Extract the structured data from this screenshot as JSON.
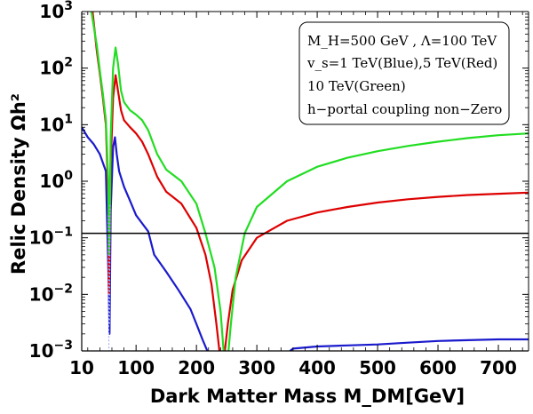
{
  "chart_data": {
    "type": "line",
    "xlabel": "Dark Matter Mass M_DM[GeV]",
    "ylabel": "Relic Density Ωh²",
    "xlim": [
      10,
      750
    ],
    "ylim_log10": [
      -3,
      3
    ],
    "x_ticks": [
      10,
      100,
      200,
      300,
      400,
      500,
      600,
      700
    ],
    "y_ticks": [
      {
        "base": "10",
        "exp": "3",
        "value": 1000
      },
      {
        "base": "10",
        "exp": "2",
        "value": 100
      },
      {
        "base": "10",
        "exp": "1",
        "value": 10
      },
      {
        "base": "10",
        "exp": "0",
        "value": 1
      },
      {
        "base": "10",
        "exp": "−1",
        "value": 0.1
      },
      {
        "base": "10",
        "exp": "−2",
        "value": 0.01
      },
      {
        "base": "10",
        "exp": "−3",
        "value": 0.001
      }
    ],
    "reference_line": {
      "y": 0.12,
      "color": "#000000"
    },
    "legend": [
      "M_H=500 GeV , Λ=100 TeV",
      "v_s=1 TeV(Blue),5 TeV(Red)",
      "10 TeV(Green)",
      "h−portal coupling non−Zero"
    ],
    "series": [
      {
        "name": "vs = 1 TeV",
        "color": "#1a1acd",
        "segments": [
          [
            [
              10,
              9
            ],
            [
              20,
              6
            ],
            [
              30,
              4.5
            ],
            [
              40,
              3
            ],
            [
              50,
              1.5
            ],
            [
              55,
              0.01
            ],
            [
              56,
              0.002
            ],
            [
              58,
              0.3
            ],
            [
              62,
              4
            ],
            [
              65,
              6
            ],
            [
              68,
              3
            ],
            [
              72,
              1.5
            ],
            [
              80,
              0.8
            ],
            [
              90,
              0.45
            ],
            [
              100,
              0.25
            ],
            [
              110,
              0.18
            ],
            [
              120,
              0.13
            ],
            [
              130,
              0.05
            ],
            [
              150,
              0.025
            ],
            [
              170,
              0.012
            ],
            [
              190,
              0.0055
            ],
            [
              200,
              0.003
            ],
            [
              210,
              0.0016
            ],
            [
              218,
              0.001
            ]
          ],
          [
            [
              355,
              0.001
            ],
            [
              360,
              0.0011
            ],
            [
              400,
              0.0012
            ],
            [
              450,
              0.00125
            ],
            [
              500,
              0.0013
            ],
            [
              550,
              0.0014
            ],
            [
              600,
              0.0015
            ],
            [
              650,
              0.00155
            ],
            [
              700,
              0.0016
            ],
            [
              750,
              0.0016
            ]
          ]
        ]
      },
      {
        "name": "vs = 5 TeV",
        "color": "#dd0000",
        "segments": [
          [
            [
              28,
              1000
            ],
            [
              35,
              200
            ],
            [
              40,
              80
            ],
            [
              45,
              30
            ],
            [
              50,
              10
            ],
            [
              54,
              0.5
            ],
            [
              55,
              0.01
            ],
            [
              56,
              0.05
            ],
            [
              58,
              2
            ],
            [
              62,
              30
            ],
            [
              66,
              75
            ],
            [
              70,
              40
            ],
            [
              75,
              18
            ],
            [
              80,
              12
            ],
            [
              90,
              9
            ],
            [
              100,
              7
            ],
            [
              110,
              5
            ],
            [
              120,
              3
            ],
            [
              135,
              1.2
            ],
            [
              150,
              0.65
            ],
            [
              175,
              0.4
            ],
            [
              200,
              0.15
            ],
            [
              215,
              0.05
            ],
            [
              225,
              0.015
            ],
            [
              233,
              0.003
            ],
            [
              238,
              0.001
            ]
          ],
          [
            [
              247,
              0.001
            ],
            [
              252,
              0.003
            ],
            [
              260,
              0.012
            ],
            [
              275,
              0.04
            ],
            [
              300,
              0.1
            ],
            [
              350,
              0.2
            ],
            [
              400,
              0.28
            ],
            [
              450,
              0.35
            ],
            [
              500,
              0.42
            ],
            [
              550,
              0.48
            ],
            [
              600,
              0.53
            ],
            [
              650,
              0.57
            ],
            [
              700,
              0.6
            ],
            [
              750,
              0.63
            ]
          ]
        ]
      },
      {
        "name": "vs = 10 TeV",
        "color": "#22dd22",
        "segments": [
          [
            [
              26,
              1000
            ],
            [
              35,
              250
            ],
            [
              40,
              90
            ],
            [
              45,
              35
            ],
            [
              50,
              12
            ],
            [
              54,
              1
            ],
            [
              55,
              0.05
            ],
            [
              56,
              0.1
            ],
            [
              58,
              6
            ],
            [
              62,
              100
            ],
            [
              66,
              230
            ],
            [
              70,
              120
            ],
            [
              75,
              40
            ],
            [
              80,
              25
            ],
            [
              90,
              18
            ],
            [
              100,
              15
            ],
            [
              110,
              12
            ],
            [
              120,
              8
            ],
            [
              135,
              3
            ],
            [
              150,
              1.6
            ],
            [
              175,
              1
            ],
            [
              200,
              0.4
            ],
            [
              215,
              0.12
            ],
            [
              230,
              0.03
            ],
            [
              240,
              0.005
            ],
            [
              245,
              0.001
            ]
          ],
          [
            [
              253,
              0.001
            ],
            [
              257,
              0.003
            ],
            [
              265,
              0.02
            ],
            [
              280,
              0.12
            ],
            [
              300,
              0.35
            ],
            [
              350,
              1
            ],
            [
              400,
              1.8
            ],
            [
              450,
              2.6
            ],
            [
              500,
              3.4
            ],
            [
              550,
              4.2
            ],
            [
              600,
              5
            ],
            [
              650,
              5.8
            ],
            [
              700,
              6.5
            ],
            [
              750,
              7
            ]
          ]
        ]
      },
      {
        "name": "dotted thresholds",
        "color": "#aaaaff",
        "dashed": true,
        "segments": [
          [
            [
              54,
              0.25
            ],
            [
              55,
              0.001
            ]
          ],
          [
            [
              56,
              0.003
            ],
            [
              57,
              0.4
            ]
          ]
        ]
      }
    ]
  }
}
